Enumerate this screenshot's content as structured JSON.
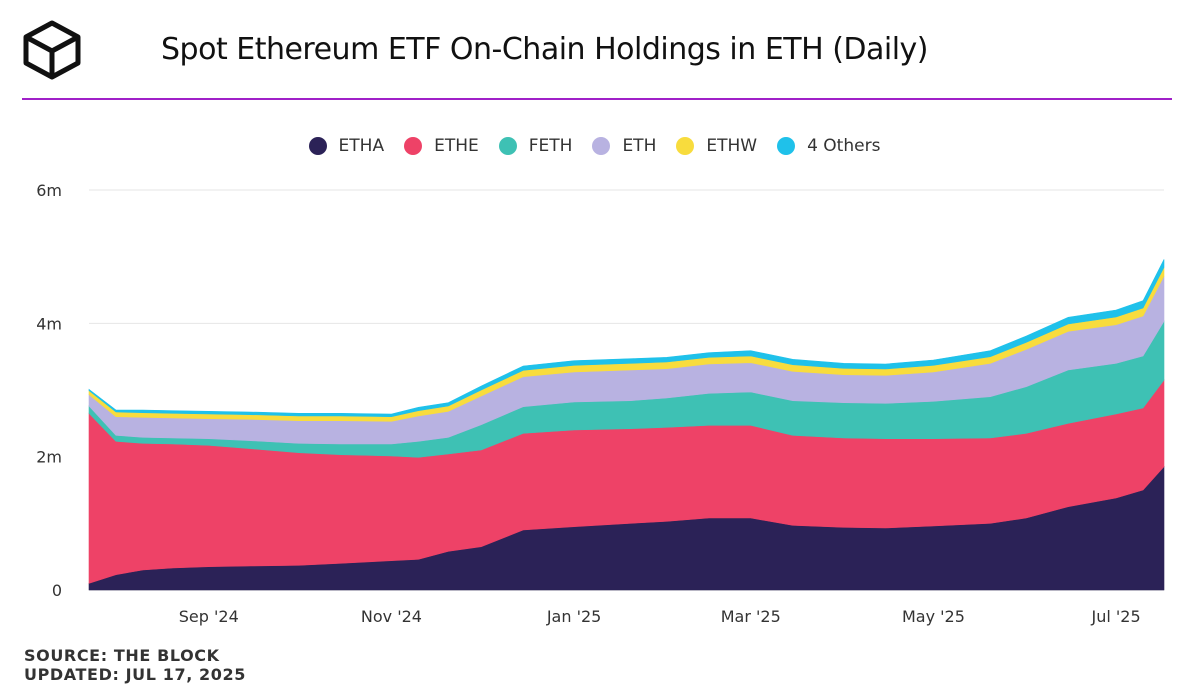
{
  "header": {
    "title": "Spot Ethereum ETF On-Chain Holdings in ETH (Daily)",
    "accent_color": "#a020c8"
  },
  "footer": {
    "source": "SOURCE: THE BLOCK",
    "updated": "UPDATED: JUL 17, 2025"
  },
  "chart_data": {
    "type": "area",
    "stacked": true,
    "title": "Spot Ethereum ETF On-Chain Holdings in ETH (Daily)",
    "xlabel": "",
    "ylabel": "",
    "ylim": [
      0,
      6000000
    ],
    "yticks": [
      {
        "value": 0,
        "label": "0"
      },
      {
        "value": 2000000,
        "label": "2m"
      },
      {
        "value": 4000000,
        "label": "4m"
      },
      {
        "value": 6000000,
        "label": "6m"
      }
    ],
    "xlim": [
      "2024-07-23",
      "2025-07-17"
    ],
    "xticks": [
      {
        "date": "2024-09-01",
        "label": "Sep '24"
      },
      {
        "date": "2024-11-01",
        "label": "Nov '24"
      },
      {
        "date": "2025-01-01",
        "label": "Jan '25"
      },
      {
        "date": "2025-03-01",
        "label": "Mar '25"
      },
      {
        "date": "2025-05-01",
        "label": "May '25"
      },
      {
        "date": "2025-07-01",
        "label": "Jul '25"
      }
    ],
    "grid": true,
    "legend_position": "top-center",
    "x": [
      "2024-07-23",
      "2024-08-01",
      "2024-08-10",
      "2024-08-20",
      "2024-09-01",
      "2024-09-15",
      "2024-10-01",
      "2024-10-15",
      "2024-11-01",
      "2024-11-10",
      "2024-11-20",
      "2024-12-01",
      "2024-12-15",
      "2025-01-01",
      "2025-01-20",
      "2025-02-01",
      "2025-02-15",
      "2025-03-01",
      "2025-03-15",
      "2025-04-01",
      "2025-04-15",
      "2025-05-01",
      "2025-05-20",
      "2025-06-01",
      "2025-06-15",
      "2025-07-01",
      "2025-07-10",
      "2025-07-17"
    ],
    "series": [
      {
        "name": "ETHA",
        "color": "#2b2257",
        "values": [
          100000,
          230000,
          300000,
          330000,
          350000,
          360000,
          370000,
          400000,
          440000,
          460000,
          580000,
          650000,
          900000,
          950000,
          1000000,
          1030000,
          1080000,
          1080000,
          970000,
          940000,
          930000,
          960000,
          1000000,
          1080000,
          1250000,
          1380000,
          1500000,
          1850000
        ]
      },
      {
        "name": "ETHE",
        "color": "#ee4267",
        "values": [
          2550000,
          2000000,
          1900000,
          1860000,
          1820000,
          1760000,
          1690000,
          1630000,
          1570000,
          1530000,
          1460000,
          1450000,
          1450000,
          1450000,
          1420000,
          1410000,
          1390000,
          1390000,
          1350000,
          1340000,
          1340000,
          1310000,
          1280000,
          1270000,
          1250000,
          1260000,
          1230000,
          1300000
        ]
      },
      {
        "name": "FETH",
        "color": "#3ec1b4",
        "values": [
          110000,
          90000,
          90000,
          90000,
          100000,
          120000,
          140000,
          160000,
          180000,
          240000,
          250000,
          380000,
          400000,
          420000,
          420000,
          440000,
          480000,
          500000,
          520000,
          530000,
          530000,
          560000,
          620000,
          700000,
          800000,
          760000,
          780000,
          880000
        ]
      },
      {
        "name": "ETH",
        "color": "#b8b2e1",
        "values": [
          170000,
          280000,
          300000,
          300000,
          300000,
          320000,
          340000,
          350000,
          340000,
          380000,
          390000,
          430000,
          450000,
          450000,
          460000,
          440000,
          440000,
          440000,
          440000,
          420000,
          420000,
          440000,
          500000,
          560000,
          580000,
          580000,
          600000,
          680000
        ]
      },
      {
        "name": "ETHW",
        "color": "#f8dc3d",
        "values": [
          60000,
          70000,
          70000,
          70000,
          70000,
          70000,
          70000,
          70000,
          70000,
          80000,
          80000,
          90000,
          95000,
          100000,
          100000,
          100000,
          100000,
          100000,
          100000,
          95000,
          95000,
          100000,
          100000,
          105000,
          110000,
          115000,
          120000,
          130000
        ]
      },
      {
        "name": "4 Others",
        "color": "#1fc1ea",
        "values": [
          20000,
          30000,
          40000,
          40000,
          40000,
          40000,
          40000,
          40000,
          40000,
          50000,
          50000,
          60000,
          65000,
          70000,
          70000,
          70000,
          70000,
          80000,
          80000,
          75000,
          75000,
          80000,
          90000,
          95000,
          100000,
          105000,
          110000,
          120000
        ]
      }
    ]
  }
}
